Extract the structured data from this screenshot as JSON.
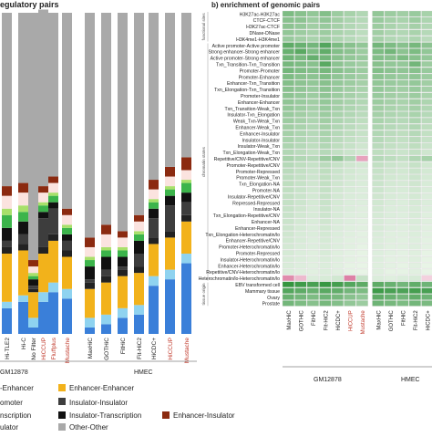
{
  "panel_a": {
    "title": "egulatory pairs",
    "x_labels": [
      "Hi-TLE2",
      "Hi-C",
      "No Filter",
      "HiCCUP",
      "Fluffplus",
      "Mustache",
      "MaxHiC",
      "GOTHiC",
      "FitHiC",
      "Fit-HiC2",
      "HiCDC+",
      "HiCCUP",
      "Mustache"
    ],
    "x_label_colors": [
      "#222222",
      "#222222",
      "#222222",
      "#c0392b",
      "#c0392b",
      "#c0392b",
      "#222222",
      "#222222",
      "#222222",
      "#222222",
      "#222222",
      "#c0392b",
      "#c0392b"
    ],
    "cell_lines": [
      "GM12878",
      "HMEC"
    ],
    "legend": [
      {
        "label": "Enhancer-Enhancer",
        "color": "#f2b21b",
        "key": "ee"
      },
      {
        "label": "Insulator-Insulator",
        "color": "#3d3d3d",
        "key": "ii"
      },
      {
        "label": "Insulator-Transcription",
        "color": "#111111",
        "key": "it"
      },
      {
        "label": "Enhancer-Insulator",
        "color": "#8b2a10",
        "key": "ei"
      },
      {
        "label": "Other-Other",
        "color": "#a9a9a9",
        "key": "oo"
      }
    ],
    "legend_fragments": [
      "-Enhancer",
      "omoter",
      "nscription",
      "ulator"
    ]
  },
  "panel_b": {
    "title": "b) enrichment of genomic pairs",
    "row_labels": [
      "H3K27ac-H3K27ac",
      "CTCF-CTCF",
      "H3K27ac-CTCF",
      "DNase-DNase",
      "H3K4me1-H3K4me1",
      "Active promoter-Active promoter",
      "Strong enhancer-Strong enhancer",
      "Active promoter-Strong enhancer",
      "Txn_Transition-Txn_Transition",
      "Promoter-Promoter",
      "Promoter-Enhancer",
      "Enhancer-Txn_Transition",
      "Txn_Elongation-Txn_Transition",
      "Promoter-Insulator",
      "Enhancer-Enhancer",
      "Txn_Transition-Weak_Txn",
      "Insulator-Txn_Elongation",
      "Weak_Txn-Weak_Txn",
      "Enhancer-Weak_Txn",
      "Enhancer-Insulator",
      "Insulator-Insulator",
      "Insulator-Weak_Txn",
      "Txn_Elongation-Weak_Txn",
      "Repetitive/CNV-Repetitive/CNV",
      "Promoter-Repetitive/CNV",
      "Promoter-Repressed",
      "Promoter-Weak_Txn",
      "Txn_Elongation-NA",
      "Promoter-NA",
      "Insulator-Repetitive/CNV",
      "Repressed-Repressed",
      "Insulator-NA",
      "Txn_Elongation-Repetitive/CNV",
      "Enhancer-NA",
      "Enhancer-Repressed",
      "Txn_Elongation-Heterochromatin/lo",
      "Enhancer-Repetitive/CNV",
      "Promoter-Heterochromatin/lo",
      "Promoter-Repressed",
      "Insulator-Heterochromatin/lo",
      "Enhancer-Heterochromatin/lo",
      "Repetitive/CNV-Heterochromatin/lo",
      "Heterochromatin/lo-Heterochromatin/lo",
      "EBV transformed cell",
      "Mammary tissue",
      "Ovary",
      "Prostate"
    ],
    "row_groups": [
      "functional sites",
      "chromatin states",
      "tissue origin"
    ],
    "col_labels": [
      "MaxHiC",
      "GOTHiC",
      "FitHiC",
      "Fit-HiC2",
      "HiCDC+",
      "HiCCUP",
      "Mustache",
      "MaxHiC",
      "GOTHiC",
      "FitHiC",
      "Fit-HiC2",
      "HiCDC+"
    ],
    "col_label_colors": [
      "#222222",
      "#222222",
      "#222222",
      "#222222",
      "#222222",
      "#c0392b",
      "#c0392b",
      "#222222",
      "#222222",
      "#222222",
      "#222222",
      "#222222"
    ],
    "cell_lines": [
      "GM12878",
      "HMEC"
    ]
  },
  "colors": {
    "ee": "#f2b21b",
    "pp": "#3a7fd9",
    "pe": "#8fd3f0",
    "pi": "#222222",
    "ii": "#3d3d3d",
    "it": "#111111",
    "tt": "#3cb44b",
    "et": "#a8e06a",
    "ei": "#8b2a10",
    "pink": "#f7c6c6",
    "lightpink": "#fbe3df",
    "oo": "#a9a9a9",
    "heat_low": "#ffffff",
    "heat_high": "#1f8a2c",
    "heat_neg": "#c2185b"
  },
  "chart_data": [
    {
      "type": "bar",
      "stacked": true,
      "title": "egulatory pairs",
      "categories": [
        "Hi-TLE2",
        "Hi-C",
        "No Filter",
        "HiCCUP",
        "Fluffplus",
        "Mustache",
        "MaxHiC",
        "GOTHiC",
        "FitHiC",
        "Fit-HiC2",
        "HiCDC+",
        "HiCCUP",
        "Mustache"
      ],
      "ylim": [
        0,
        1
      ],
      "series": [
        {
          "key": "pp",
          "values": [
            0.08,
            0.1,
            0.02,
            0.1,
            0.13,
            0.11,
            0.02,
            0.03,
            0.05,
            0.06,
            0.15,
            0.17,
            0.22
          ]
        },
        {
          "key": "pe",
          "values": [
            0.02,
            0.02,
            0.03,
            0.03,
            0.03,
            0.03,
            0.03,
            0.03,
            0.03,
            0.03,
            0.03,
            0.03,
            0.03
          ]
        },
        {
          "key": "ee",
          "values": [
            0.15,
            0.14,
            0.08,
            0.12,
            0.13,
            0.1,
            0.09,
            0.1,
            0.1,
            0.1,
            0.1,
            0.1,
            0.1
          ]
        },
        {
          "key": "pi",
          "values": [
            0.02,
            0.02,
            0.01,
            0.02,
            0.02,
            0.02,
            0.02,
            0.02,
            0.02,
            0.02,
            0.02,
            0.02,
            0.02
          ]
        },
        {
          "key": "ii",
          "values": [
            0.02,
            0.03,
            0.01,
            0.09,
            0.08,
            0.03,
            0.01,
            0.02,
            0.01,
            0.04,
            0.06,
            0.08,
            0.04
          ]
        },
        {
          "key": "it",
          "values": [
            0.04,
            0.04,
            0.02,
            0.02,
            0.02,
            0.02,
            0.04,
            0.04,
            0.03,
            0.04,
            0.03,
            0.03,
            0.03
          ]
        },
        {
          "key": "tt",
          "values": [
            0.04,
            0.03,
            0.01,
            0.02,
            0.02,
            0.02,
            0.02,
            0.02,
            0.02,
            0.02,
            0.02,
            0.02,
            0.03
          ]
        },
        {
          "key": "et",
          "values": [
            0.02,
            0.02,
            0.01,
            0.01,
            0.01,
            0.01,
            0.01,
            0.01,
            0.01,
            0.01,
            0.01,
            0.01,
            0.01
          ]
        },
        {
          "key": "lightpink",
          "values": [
            0.04,
            0.04,
            0.02,
            0.03,
            0.03,
            0.03,
            0.03,
            0.04,
            0.03,
            0.03,
            0.03,
            0.03,
            0.03
          ]
        },
        {
          "key": "ei",
          "values": [
            0.03,
            0.03,
            0.02,
            0.02,
            0.02,
            0.02,
            0.03,
            0.03,
            0.02,
            0.02,
            0.03,
            0.03,
            0.04
          ]
        },
        {
          "key": "oo",
          "values": [
            0.54,
            0.53,
            0.77,
            0.55,
            0.51,
            0.61,
            0.7,
            0.66,
            0.68,
            0.63,
            0.52,
            0.48,
            0.45
          ]
        }
      ]
    },
    {
      "type": "heatmap",
      "title": "b) enrichment of genomic pairs",
      "rows": 47,
      "cols": [
        "MaxHiC",
        "GOTHiC",
        "FitHiC",
        "Fit-HiC2",
        "HiCDC+",
        "HiCCUP",
        "Mustache",
        "MaxHiC",
        "GOTHiC",
        "FitHiC",
        "Fit-HiC2",
        "HiCDC+"
      ],
      "values": [
        [
          0.55,
          0.5,
          0.45,
          0.52,
          0.4,
          0.35,
          0.3,
          0.45,
          0.4,
          0.38,
          0.42,
          0.35
        ],
        [
          0.5,
          0.48,
          0.4,
          0.46,
          0.38,
          0.32,
          0.28,
          0.42,
          0.36,
          0.34,
          0.4,
          0.32
        ],
        [
          0.48,
          0.44,
          0.38,
          0.42,
          0.36,
          0.3,
          0.26,
          0.4,
          0.34,
          0.3,
          0.36,
          0.3
        ],
        [
          0.45,
          0.4,
          0.36,
          0.4,
          0.34,
          0.3,
          0.25,
          0.38,
          0.32,
          0.3,
          0.34,
          0.28
        ],
        [
          0.42,
          0.38,
          0.34,
          0.38,
          0.32,
          0.28,
          0.24,
          0.36,
          0.3,
          0.28,
          0.32,
          0.26
        ],
        [
          0.7,
          0.65,
          0.6,
          0.75,
          0.55,
          0.5,
          0.45,
          0.6,
          0.55,
          0.5,
          0.58,
          0.48
        ],
        [
          0.65,
          0.72,
          0.55,
          0.68,
          0.52,
          0.48,
          0.4,
          0.55,
          0.6,
          0.48,
          0.55,
          0.45
        ],
        [
          0.62,
          0.58,
          0.66,
          0.6,
          0.5,
          0.45,
          0.42,
          0.52,
          0.5,
          0.55,
          0.5,
          0.44
        ],
        [
          0.58,
          0.55,
          0.5,
          0.72,
          0.48,
          0.42,
          0.38,
          0.5,
          0.45,
          0.44,
          0.6,
          0.4
        ],
        [
          0.6,
          0.55,
          0.52,
          0.58,
          0.5,
          0.45,
          0.4,
          0.52,
          0.48,
          0.46,
          0.5,
          0.42
        ],
        [
          0.55,
          0.5,
          0.48,
          0.54,
          0.46,
          0.42,
          0.38,
          0.48,
          0.44,
          0.42,
          0.46,
          0.4
        ],
        [
          0.52,
          0.48,
          0.45,
          0.5,
          0.44,
          0.4,
          0.36,
          0.45,
          0.42,
          0.4,
          0.44,
          0.38
        ],
        [
          0.5,
          0.46,
          0.42,
          0.48,
          0.42,
          0.38,
          0.34,
          0.44,
          0.4,
          0.38,
          0.42,
          0.36
        ],
        [
          0.48,
          0.44,
          0.4,
          0.46,
          0.4,
          0.36,
          0.32,
          0.42,
          0.38,
          0.36,
          0.4,
          0.34
        ],
        [
          0.46,
          0.42,
          0.38,
          0.44,
          0.38,
          0.34,
          0.3,
          0.4,
          0.36,
          0.34,
          0.38,
          0.32
        ],
        [
          0.44,
          0.4,
          0.36,
          0.42,
          0.36,
          0.32,
          0.28,
          0.38,
          0.34,
          0.32,
          0.36,
          0.3
        ],
        [
          0.42,
          0.38,
          0.34,
          0.4,
          0.34,
          0.3,
          0.26,
          0.36,
          0.32,
          0.3,
          0.34,
          0.28
        ],
        [
          0.4,
          0.36,
          0.32,
          0.38,
          0.32,
          0.28,
          0.24,
          0.34,
          0.3,
          0.28,
          0.32,
          0.26
        ],
        [
          0.38,
          0.34,
          0.3,
          0.36,
          0.3,
          0.26,
          0.22,
          0.32,
          0.28,
          0.26,
          0.3,
          0.24
        ],
        [
          0.36,
          0.32,
          0.28,
          0.34,
          0.28,
          0.24,
          0.2,
          0.3,
          0.26,
          0.24,
          0.28,
          0.22
        ],
        [
          0.34,
          0.3,
          0.26,
          0.32,
          0.26,
          0.22,
          0.18,
          0.28,
          0.24,
          0.22,
          0.26,
          0.2
        ],
        [
          0.32,
          0.28,
          0.24,
          0.3,
          0.24,
          0.2,
          0.16,
          0.26,
          0.22,
          0.2,
          0.24,
          0.18
        ],
        [
          0.3,
          0.26,
          0.22,
          0.28,
          0.22,
          0.18,
          0.15,
          0.24,
          0.2,
          0.18,
          0.22,
          0.16
        ],
        [
          0.35,
          0.3,
          0.28,
          0.4,
          0.45,
          0.3,
          -0.4,
          0.28,
          0.25,
          0.22,
          0.3,
          0.35
        ],
        [
          0.28,
          0.24,
          0.2,
          0.26,
          0.2,
          0.16,
          0.14,
          0.22,
          0.18,
          0.16,
          0.2,
          0.15
        ],
        [
          0.26,
          0.22,
          0.18,
          0.24,
          0.18,
          0.15,
          0.12,
          0.2,
          0.16,
          0.15,
          0.18,
          0.14
        ],
        [
          0.25,
          0.21,
          0.17,
          0.23,
          0.17,
          0.14,
          0.12,
          0.19,
          0.15,
          0.14,
          0.17,
          0.13
        ],
        [
          0.24,
          0.2,
          0.16,
          0.22,
          0.16,
          0.13,
          0.11,
          0.18,
          0.14,
          0.13,
          0.16,
          0.12
        ],
        [
          0.23,
          0.19,
          0.15,
          0.21,
          0.15,
          0.12,
          0.1,
          0.17,
          0.13,
          0.12,
          0.15,
          0.11
        ],
        [
          0.22,
          0.18,
          0.14,
          0.2,
          0.14,
          0.11,
          0.1,
          0.16,
          0.12,
          0.11,
          0.14,
          0.1
        ],
        [
          0.21,
          0.17,
          0.13,
          0.19,
          0.13,
          0.1,
          0.09,
          0.15,
          0.11,
          0.1,
          0.13,
          0.1
        ],
        [
          0.2,
          0.16,
          0.12,
          0.18,
          0.12,
          0.1,
          0.08,
          0.14,
          0.1,
          0.1,
          0.12,
          0.09
        ],
        [
          0.19,
          0.15,
          0.12,
          0.17,
          0.12,
          0.09,
          0.08,
          0.13,
          0.1,
          0.09,
          0.12,
          0.08
        ],
        [
          0.18,
          0.14,
          0.11,
          0.16,
          0.11,
          0.09,
          0.07,
          0.12,
          0.09,
          0.09,
          0.11,
          0.08
        ],
        [
          0.17,
          0.13,
          0.1,
          0.15,
          0.1,
          0.08,
          0.07,
          0.12,
          0.09,
          0.08,
          0.1,
          0.07
        ],
        [
          0.16,
          0.12,
          0.1,
          0.14,
          0.1,
          0.08,
          0.06,
          0.11,
          0.08,
          0.08,
          0.1,
          0.07
        ],
        [
          0.15,
          0.12,
          0.09,
          0.13,
          0.09,
          0.07,
          0.06,
          0.1,
          0.08,
          0.07,
          0.09,
          0.06
        ],
        [
          0.14,
          0.11,
          0.09,
          0.12,
          0.09,
          0.07,
          0.05,
          0.1,
          0.07,
          0.07,
          0.09,
          0.06
        ],
        [
          0.13,
          0.1,
          0.08,
          0.12,
          0.08,
          0.06,
          0.05,
          0.09,
          0.07,
          0.06,
          0.08,
          0.05
        ],
        [
          0.12,
          0.1,
          0.08,
          0.11,
          0.08,
          0.06,
          0.05,
          0.09,
          0.06,
          0.06,
          0.08,
          0.05
        ],
        [
          0.11,
          0.09,
          0.07,
          0.1,
          0.07,
          0.05,
          0.04,
          0.08,
          0.06,
          0.05,
          0.07,
          0.04
        ],
        [
          0.1,
          0.08,
          0.07,
          0.1,
          0.07,
          0.05,
          0.04,
          0.08,
          0.05,
          0.05,
          0.07,
          0.04
        ],
        [
          -0.5,
          -0.3,
          0.1,
          0.12,
          0.15,
          -0.55,
          0.2,
          0.1,
          0.08,
          0.1,
          0.12,
          -0.2
        ],
        [
          0.9,
          0.85,
          0.8,
          0.88,
          0.82,
          0.75,
          0.7,
          0.7,
          0.65,
          0.6,
          0.68,
          0.62
        ],
        [
          0.75,
          0.7,
          0.65,
          0.72,
          0.68,
          0.6,
          0.55,
          0.85,
          0.8,
          0.78,
          0.82,
          0.8
        ],
        [
          0.65,
          0.6,
          0.55,
          0.62,
          0.58,
          0.5,
          0.45,
          0.7,
          0.65,
          0.6,
          0.68,
          0.62
        ],
        [
          0.6,
          0.55,
          0.5,
          0.58,
          0.52,
          0.45,
          0.4,
          0.62,
          0.58,
          0.55,
          0.6,
          0.56
        ]
      ]
    }
  ]
}
